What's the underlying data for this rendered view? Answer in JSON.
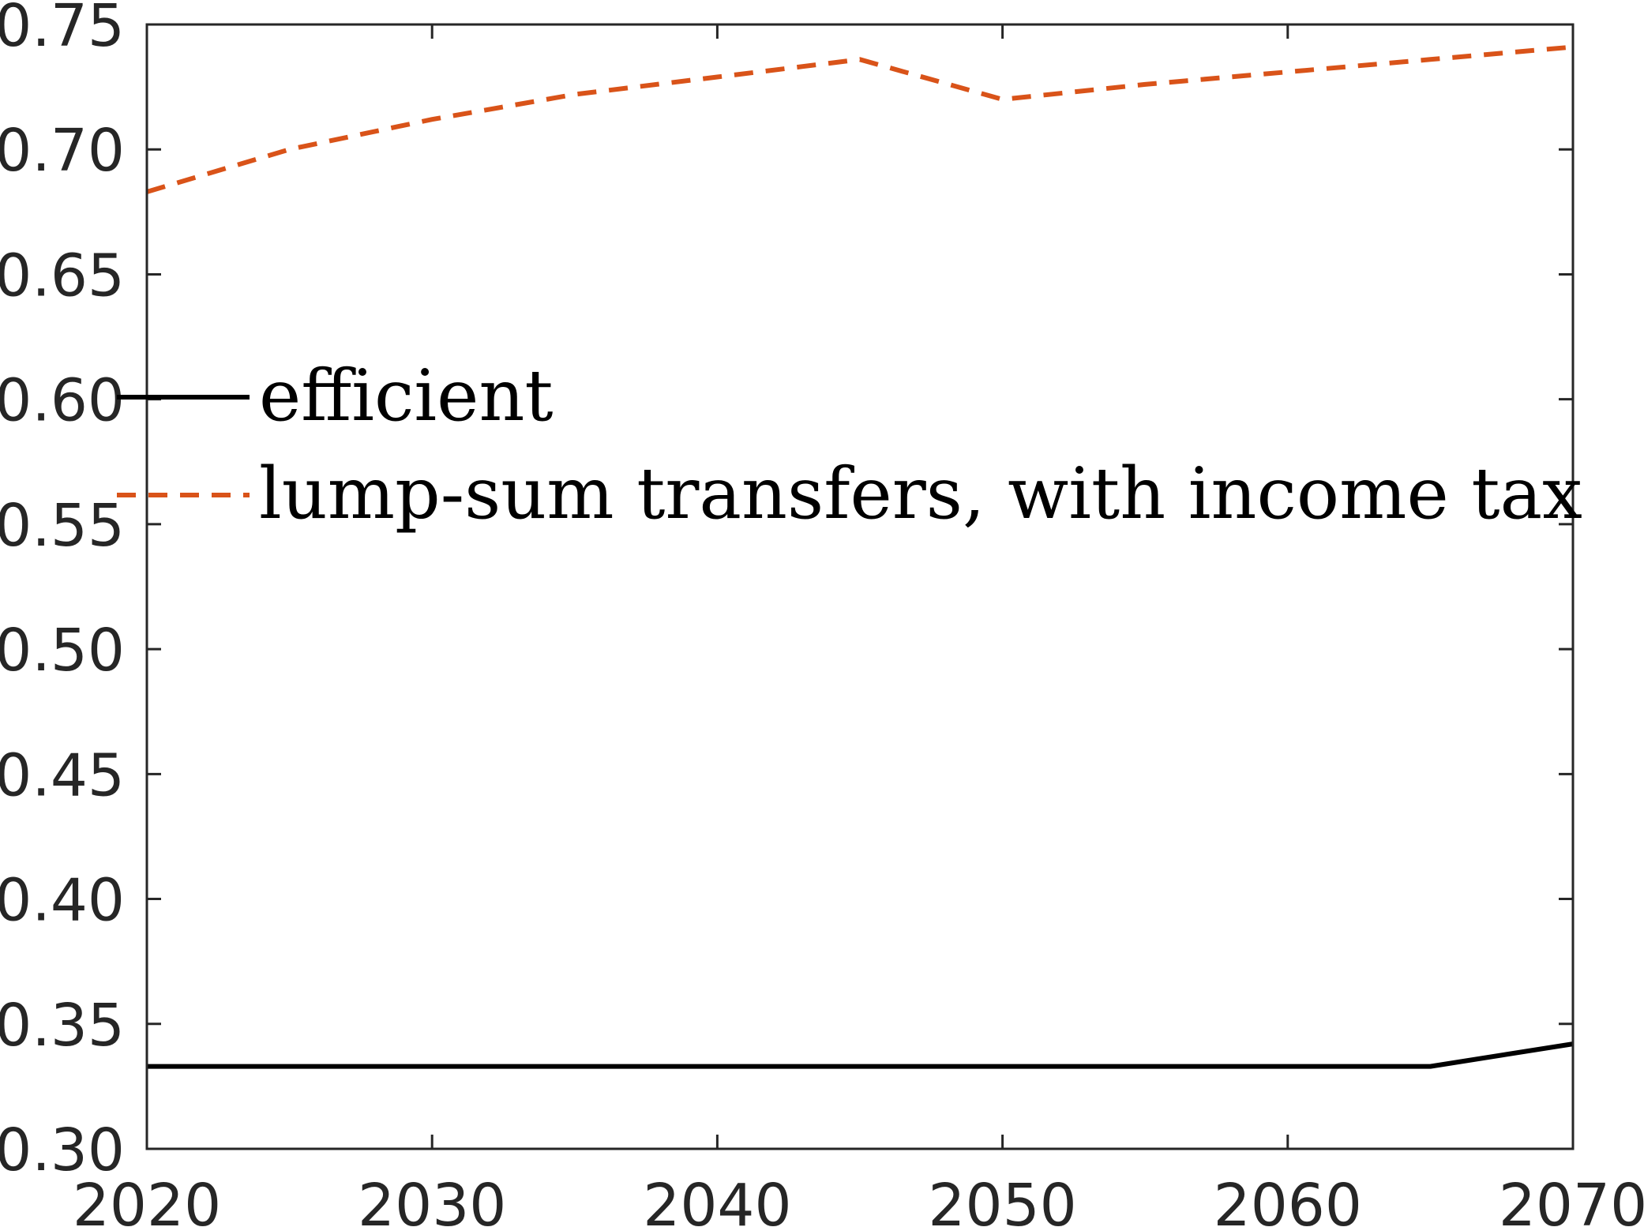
{
  "chart_data": {
    "type": "line",
    "title": "",
    "xlabel": "",
    "ylabel": "",
    "xlim": [
      2020,
      2070
    ],
    "ylim": [
      0.3,
      0.75
    ],
    "xticks": [
      2020,
      2030,
      2040,
      2050,
      2060,
      2070
    ],
    "xtick_labels": [
      "2020",
      "2030",
      "2040",
      "2050",
      "2060",
      "2070"
    ],
    "yticks": [
      0.3,
      0.35,
      0.4,
      0.45,
      0.5,
      0.55,
      0.6,
      0.65,
      0.7,
      0.75
    ],
    "ytick_labels": [
      "0.30",
      "0.35",
      "0.40",
      "0.45",
      "0.50",
      "0.55",
      "0.60",
      "0.65",
      "0.70",
      "0.75"
    ],
    "grid": false,
    "legend_position": "middle-left",
    "series": [
      {
        "name": "efficient",
        "color": "#000000",
        "style": "solid",
        "x": [
          2020,
          2025,
          2030,
          2035,
          2040,
          2045,
          2050,
          2055,
          2060,
          2065,
          2070
        ],
        "y": [
          0.333,
          0.333,
          0.333,
          0.333,
          0.333,
          0.333,
          0.333,
          0.333,
          0.333,
          0.333,
          0.342
        ]
      },
      {
        "name": "lump-sum transfers, with income tax",
        "color": "#D95319",
        "style": "dashed",
        "x": [
          2020,
          2025,
          2030,
          2035,
          2040,
          2045,
          2050,
          2055,
          2060,
          2065,
          2070
        ],
        "y": [
          0.683,
          0.7,
          0.712,
          0.722,
          0.729,
          0.736,
          0.72,
          0.726,
          0.731,
          0.736,
          0.741
        ]
      }
    ]
  }
}
